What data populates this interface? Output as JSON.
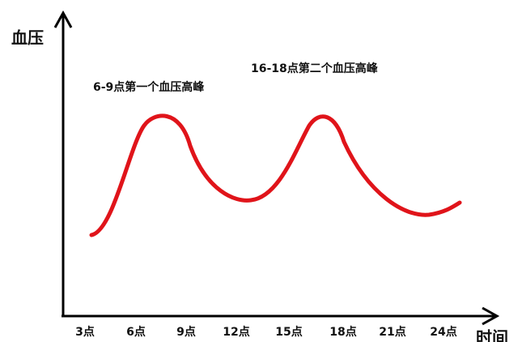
{
  "y_axis_title": "血压",
  "x_axis_title": "时间",
  "x_ticks": [
    "3点",
    "6点",
    "9点",
    "12点",
    "15点",
    "18点",
    "21点",
    "24点"
  ],
  "annotations": [
    "6-9点第一个血压高峰",
    "16-18点第二个血压高峰"
  ]
}
